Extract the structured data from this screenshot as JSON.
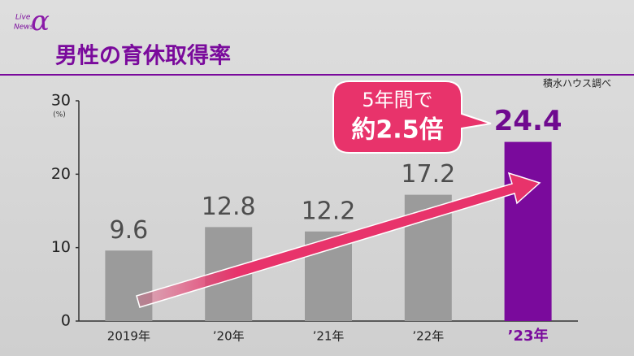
{
  "logo": {
    "line1": "Live",
    "line2": "News",
    "mark": "α"
  },
  "chart_data": {
    "type": "bar",
    "title": "男性の育休取得率",
    "source": "積水ハウス調べ",
    "y_unit": "(%)",
    "annotation": [
      "5年間で",
      "約2.5倍"
    ],
    "categories": [
      "2019年",
      "’20年",
      "’21年",
      "’22年",
      "’23年"
    ],
    "values": [
      9.6,
      12.8,
      12.2,
      17.2,
      24.4
    ],
    "colors": [
      "#9b9b9b",
      "#9b9b9b",
      "#9b9b9b",
      "#9b9b9b",
      "#7a0a9c"
    ],
    "label_colors": [
      "#4d4d4d",
      "#4d4d4d",
      "#4d4d4d",
      "#4d4d4d",
      "#6f0a8f"
    ],
    "ylim": [
      0,
      30
    ],
    "yticks": [
      0,
      10,
      20,
      30
    ]
  }
}
